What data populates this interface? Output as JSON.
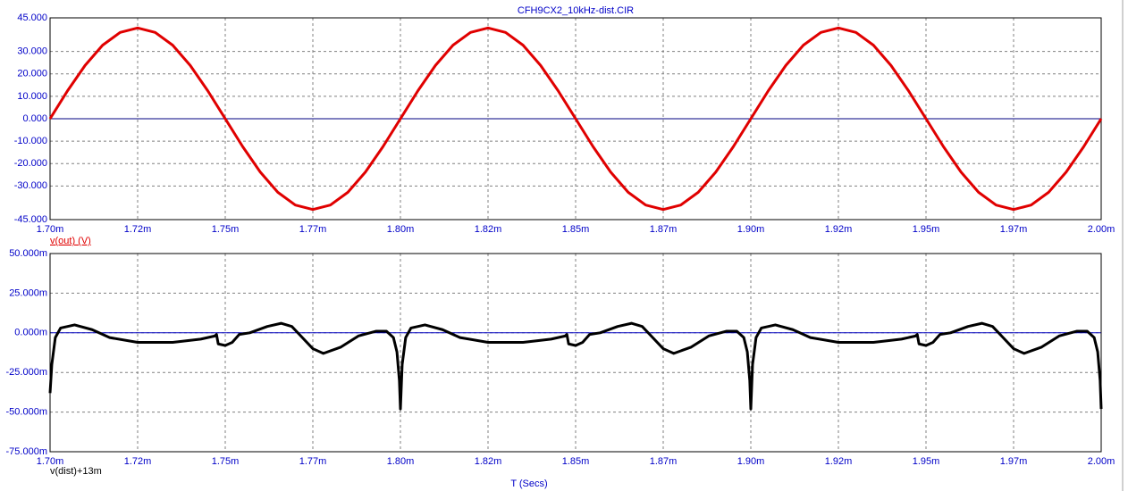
{
  "chart_data": [
    {
      "type": "line",
      "title": "CFH9CX2_10kHz-dist.CIR",
      "x": [
        0.0017,
        0.001705,
        0.00171,
        0.001715,
        0.00172,
        0.001725,
        0.00173,
        0.001735,
        0.00174,
        0.001745,
        0.00175,
        0.001755,
        0.00176,
        0.001765,
        0.00177,
        0.001775,
        0.00178,
        0.001785,
        0.00179,
        0.001795,
        0.0018,
        0.001805,
        0.00181,
        0.001815,
        0.00182,
        0.001825,
        0.00183,
        0.001835,
        0.00184,
        0.001845,
        0.00185,
        0.001855,
        0.00186,
        0.001865,
        0.00187,
        0.001875,
        0.00188,
        0.001885,
        0.00189,
        0.001895,
        0.0019,
        0.001905,
        0.00191,
        0.001915,
        0.00192,
        0.001925,
        0.00193,
        0.001935,
        0.00194,
        0.001945,
        0.00195,
        0.001955,
        0.00196,
        0.001965,
        0.00197,
        0.001975,
        0.00198,
        0.001985,
        0.00199,
        0.001995,
        0.002
      ],
      "series": [
        {
          "name": "v(out) (V)",
          "color": "#e00000",
          "values": [
            0,
            12.5,
            23.8,
            32.8,
            38.5,
            40.5,
            38.5,
            32.8,
            23.8,
            12.5,
            0,
            -12.5,
            -23.8,
            -32.8,
            -38.5,
            -40.5,
            -38.5,
            -32.8,
            -23.8,
            -12.5,
            0,
            12.5,
            23.8,
            32.8,
            38.5,
            40.5,
            38.5,
            32.8,
            23.8,
            12.5,
            0,
            -12.5,
            -23.8,
            -32.8,
            -38.5,
            -40.5,
            -38.5,
            -32.8,
            -23.8,
            -12.5,
            0,
            12.5,
            23.8,
            32.8,
            38.5,
            40.5,
            38.5,
            32.8,
            23.8,
            12.5,
            0,
            -12.5,
            -23.8,
            -32.8,
            -38.5,
            -40.5,
            -38.5,
            -32.8,
            -23.8,
            -12.5,
            0
          ]
        }
      ],
      "xlim": [
        0.0017,
        0.002
      ],
      "xticks": [
        {
          "value": 0.0017,
          "label": "1.70m"
        },
        {
          "value": 0.001725,
          "label": "1.72m"
        },
        {
          "value": 0.00175,
          "label": "1.75m"
        },
        {
          "value": 0.001775,
          "label": "1.77m"
        },
        {
          "value": 0.0018,
          "label": "1.80m"
        },
        {
          "value": 0.001825,
          "label": "1.82m"
        },
        {
          "value": 0.00185,
          "label": "1.85m"
        },
        {
          "value": 0.001875,
          "label": "1.87m"
        },
        {
          "value": 0.0019,
          "label": "1.90m"
        },
        {
          "value": 0.001925,
          "label": "1.92m"
        },
        {
          "value": 0.00195,
          "label": "1.95m"
        },
        {
          "value": 0.001975,
          "label": "1.97m"
        },
        {
          "value": 0.002,
          "label": "2.00m"
        }
      ],
      "ylim": [
        -45,
        45
      ],
      "yticks": [
        {
          "value": 45,
          "label": "45.000"
        },
        {
          "value": 30,
          "label": "30.000"
        },
        {
          "value": 20,
          "label": "20.000"
        },
        {
          "value": 10,
          "label": "10.000"
        },
        {
          "value": 0,
          "label": "0.000"
        },
        {
          "value": -10,
          "label": "-10.000"
        },
        {
          "value": -20,
          "label": "-20.000"
        },
        {
          "value": -30,
          "label": "-30.000"
        },
        {
          "value": -45,
          "label": "-45.000"
        }
      ],
      "grid": true
    },
    {
      "type": "line",
      "xlabel": "T (Secs)",
      "x": [
        0.0017,
        0.0017005,
        0.0017015,
        0.001703,
        0.001707,
        0.001712,
        0.001717,
        0.001725,
        0.001735,
        0.001743,
        0.001747,
        0.0017475,
        0.001748,
        0.00175,
        0.001752,
        0.001754,
        0.001757,
        0.001762,
        0.001766,
        0.001769,
        0.001772,
        0.001775,
        0.001778,
        0.001783,
        0.001788,
        0.001793,
        0.001796,
        0.001798,
        0.001799,
        0.0017997,
        0.0018,
        0.0018005,
        0.0018015,
        0.001803,
        0.001807,
        0.001812,
        0.001817,
        0.001825,
        0.001835,
        0.001843,
        0.001847,
        0.0018475,
        0.001848,
        0.00185,
        0.001852,
        0.001854,
        0.001857,
        0.001862,
        0.001866,
        0.001869,
        0.001872,
        0.001875,
        0.001878,
        0.001883,
        0.001888,
        0.001893,
        0.001896,
        0.001898,
        0.001899,
        0.0018997,
        0.0019,
        0.0019005,
        0.0019015,
        0.001903,
        0.001907,
        0.001912,
        0.001917,
        0.001925,
        0.001935,
        0.001943,
        0.001947,
        0.0019475,
        0.001948,
        0.00195,
        0.001952,
        0.001954,
        0.001957,
        0.001962,
        0.001966,
        0.001969,
        0.001972,
        0.001975,
        0.001978,
        0.001983,
        0.001988,
        0.001993,
        0.001996,
        0.001998,
        0.001999,
        0.0019997,
        0.002
      ],
      "series": [
        {
          "name": "v(dist)+13m",
          "color": "#000000",
          "values": [
            -0.038,
            -0.02,
            -0.003,
            0.003,
            0.005,
            0.002,
            -0.003,
            -0.006,
            -0.006,
            -0.004,
            -0.002,
            -0.001,
            -0.007,
            -0.008,
            -0.006,
            -0.001,
            0,
            0.004,
            0.006,
            0.004,
            -0.003,
            -0.01,
            -0.013,
            -0.009,
            -0.002,
            0.001,
            0.001,
            -0.003,
            -0.012,
            -0.03,
            -0.048,
            -0.02,
            -0.003,
            0.003,
            0.005,
            0.002,
            -0.003,
            -0.006,
            -0.006,
            -0.004,
            -0.002,
            -0.001,
            -0.007,
            -0.008,
            -0.006,
            -0.001,
            0,
            0.004,
            0.006,
            0.004,
            -0.003,
            -0.01,
            -0.013,
            -0.009,
            -0.002,
            0.001,
            0.001,
            -0.003,
            -0.012,
            -0.03,
            -0.048,
            -0.02,
            -0.003,
            0.003,
            0.005,
            0.002,
            -0.003,
            -0.006,
            -0.006,
            -0.004,
            -0.002,
            -0.001,
            -0.007,
            -0.008,
            -0.006,
            -0.001,
            0,
            0.004,
            0.006,
            0.004,
            -0.003,
            -0.01,
            -0.013,
            -0.009,
            -0.002,
            0.001,
            0.001,
            -0.003,
            -0.012,
            -0.03,
            -0.048
          ]
        }
      ],
      "xlim": [
        0.0017,
        0.002
      ],
      "xticks": [
        {
          "value": 0.0017,
          "label": "1.70m"
        },
        {
          "value": 0.001725,
          "label": "1.72m"
        },
        {
          "value": 0.00175,
          "label": "1.75m"
        },
        {
          "value": 0.001775,
          "label": "1.77m"
        },
        {
          "value": 0.0018,
          "label": "1.80m"
        },
        {
          "value": 0.001825,
          "label": "1.82m"
        },
        {
          "value": 0.00185,
          "label": "1.85m"
        },
        {
          "value": 0.001875,
          "label": "1.87m"
        },
        {
          "value": 0.0019,
          "label": "1.90m"
        },
        {
          "value": 0.001925,
          "label": "1.92m"
        },
        {
          "value": 0.00195,
          "label": "1.95m"
        },
        {
          "value": 0.001975,
          "label": "1.97m"
        },
        {
          "value": 0.002,
          "label": "2.00m"
        }
      ],
      "ylim": [
        -0.075,
        0.05
      ],
      "yticks": [
        {
          "value": 0.05,
          "label": "50.000m"
        },
        {
          "value": 0.025,
          "label": "25.000m"
        },
        {
          "value": 0,
          "label": "0.000m"
        },
        {
          "value": -0.025,
          "label": "-25.000m"
        },
        {
          "value": -0.05,
          "label": "-50.000m"
        },
        {
          "value": -0.075,
          "label": "-75.000m"
        }
      ],
      "grid": true
    }
  ]
}
